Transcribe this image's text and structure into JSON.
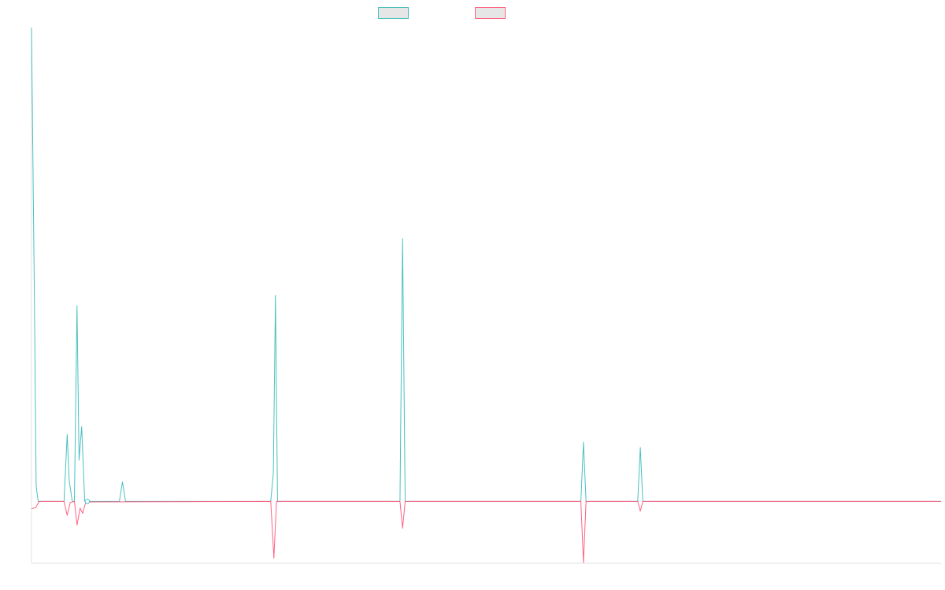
{
  "chart_data": {
    "type": "line",
    "title": "",
    "xlabel": "",
    "ylabel": "",
    "grid": false,
    "legend_position": "top-center",
    "xlim": [
      0,
      176
    ],
    "ylim": [
      -12,
      92
    ],
    "series": [
      {
        "color": "#4bc0c0",
        "fill": "#e6e6e6",
        "points": [
          [
            0,
            92
          ],
          [
            0.6,
            36
          ],
          [
            0.9,
            3
          ],
          [
            1.3,
            0
          ],
          [
            6.3,
            0
          ],
          [
            6.9,
            13
          ],
          [
            7.3,
            4
          ],
          [
            7.9,
            0
          ],
          [
            8.3,
            0
          ],
          [
            8.8,
            38
          ],
          [
            9.2,
            8
          ],
          [
            9.7,
            14.5
          ],
          [
            10.3,
            0
          ],
          [
            17,
            0
          ],
          [
            17.6,
            3.8
          ],
          [
            18.2,
            0
          ],
          [
            46.3,
            0
          ],
          [
            46.8,
            5.5
          ],
          [
            47.2,
            40
          ],
          [
            47.6,
            0
          ],
          [
            71.3,
            0
          ],
          [
            71.8,
            51
          ],
          [
            72.3,
            0
          ],
          [
            106.3,
            0
          ],
          [
            106.8,
            11.5
          ],
          [
            107.3,
            0
          ],
          [
            117.3,
            0
          ],
          [
            117.8,
            10.5
          ],
          [
            118.3,
            0
          ],
          [
            176,
            0
          ]
        ]
      },
      {
        "color": "#ff6384",
        "fill": "#e6e6e6",
        "points": [
          [
            0,
            -1.4
          ],
          [
            0.8,
            -1.2
          ],
          [
            1.5,
            0
          ],
          [
            6.3,
            0
          ],
          [
            6.9,
            -2.7
          ],
          [
            7.5,
            -0.2
          ],
          [
            8.3,
            0
          ],
          [
            8.8,
            -4.6
          ],
          [
            9.4,
            -1.3
          ],
          [
            9.9,
            -2.3
          ],
          [
            10.5,
            -0.1
          ],
          [
            46.3,
            0
          ],
          [
            46.9,
            -11
          ],
          [
            47.4,
            0
          ],
          [
            71.3,
            0
          ],
          [
            71.8,
            -5.2
          ],
          [
            72.3,
            0
          ],
          [
            106.3,
            0
          ],
          [
            106.8,
            -11.9
          ],
          [
            107.3,
            0
          ],
          [
            117.3,
            0
          ],
          [
            117.8,
            -1.9
          ],
          [
            118.3,
            0
          ],
          [
            176,
            0
          ]
        ]
      }
    ],
    "highlight_point": [
      10.8,
      0
    ]
  }
}
